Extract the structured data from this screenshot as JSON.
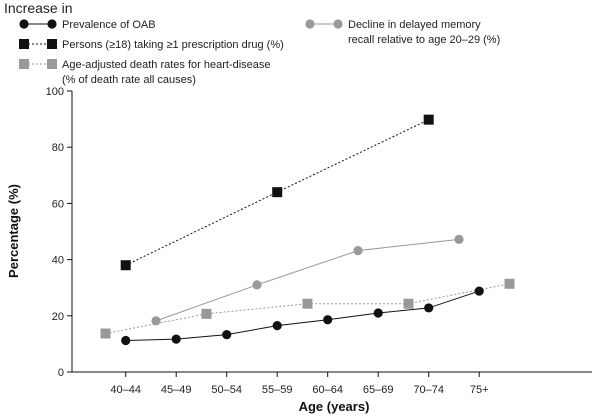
{
  "chart_data": {
    "type": "line",
    "title": "Increase in",
    "xlabel": "Age (years)",
    "ylabel": "Percentage (%)",
    "ylim": [
      0,
      100
    ],
    "yticks": [
      0,
      20,
      40,
      60,
      80,
      100
    ],
    "categories": [
      "40–44",
      "45–49",
      "50–54",
      "55–59",
      "60–64",
      "65–69",
      "70–74",
      "75+"
    ],
    "grid": false,
    "legend_position": "top",
    "series": [
      {
        "name": "Prevalence of OAB",
        "marker": "circle",
        "color": "#111111",
        "line": "solid",
        "points": [
          {
            "x": 42,
            "y": 11.2
          },
          {
            "x": 47,
            "y": 11.7
          },
          {
            "x": 52,
            "y": 13.3
          },
          {
            "x": 57,
            "y": 16.5
          },
          {
            "x": 62,
            "y": 18.6
          },
          {
            "x": 67,
            "y": 21.0
          },
          {
            "x": 72,
            "y": 22.8
          },
          {
            "x": 77,
            "y": 28.8
          }
        ]
      },
      {
        "name": "Persons (≥18) taking ≥1 prescription drug (%)",
        "marker": "square",
        "color": "#111111",
        "line": "dotted",
        "points": [
          {
            "x": 42,
            "y": 38.0
          },
          {
            "x": 57,
            "y": 64.0
          },
          {
            "x": 72,
            "y": 89.8
          }
        ]
      },
      {
        "name": "Age-adjusted death rates for heart-disease",
        "name_line2": "(% of death rate all causes)",
        "marker": "square",
        "color": "#999999",
        "line": "dotted",
        "points": [
          {
            "x": 40,
            "y": 13.7
          },
          {
            "x": 50,
            "y": 20.7
          },
          {
            "x": 60,
            "y": 24.3
          },
          {
            "x": 70,
            "y": 24.3
          },
          {
            "x": 80,
            "y": 31.4
          }
        ]
      },
      {
        "name": "Decline in delayed memory",
        "name_line2": "recall relative to age 20–29 (%)",
        "marker": "circle",
        "color": "#999999",
        "line": "solid",
        "points": [
          {
            "x": 45,
            "y": 18.2
          },
          {
            "x": 55,
            "y": 31.0
          },
          {
            "x": 65,
            "y": 43.2
          },
          {
            "x": 75,
            "y": 47.2
          }
        ]
      }
    ]
  }
}
